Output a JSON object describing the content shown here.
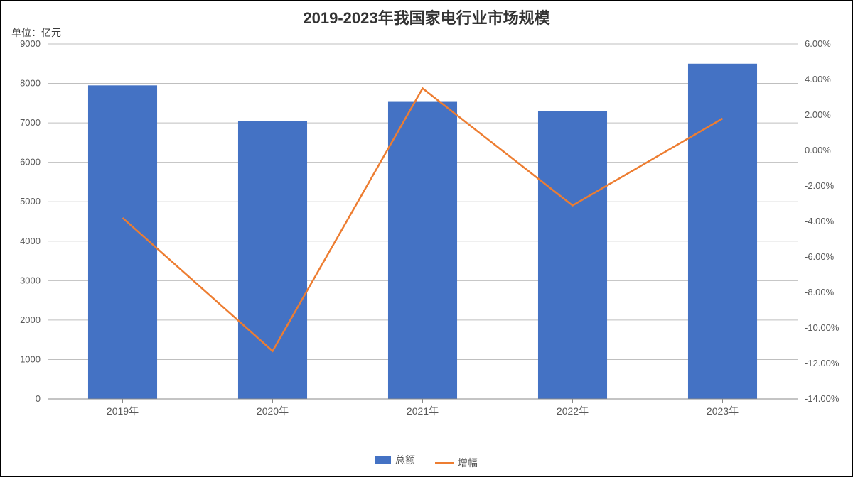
{
  "chart": {
    "type": "bar+line",
    "title": "2019-2023年我国家电行业市场规模",
    "unit_label": "单位：亿元",
    "categories": [
      "2019年",
      "2020年",
      "2021年",
      "2022年",
      "2023年"
    ],
    "bar_series": {
      "name": "总额",
      "values": [
        7950,
        7050,
        7550,
        7300,
        8500
      ],
      "color": "#4472c4",
      "bar_width_ratio": 0.46
    },
    "line_series": {
      "name": "增幅",
      "values_pct": [
        -3.8,
        -11.3,
        3.5,
        -3.1,
        1.8
      ],
      "color": "#ed7d31",
      "line_width": 2.5,
      "marker": "none"
    },
    "y_left": {
      "min": 0,
      "max": 9000,
      "step": 1000,
      "labels": [
        "0",
        "1000",
        "2000",
        "3000",
        "4000",
        "5000",
        "6000",
        "7000",
        "8000",
        "9000"
      ]
    },
    "y_right": {
      "min": -14,
      "max": 6,
      "step": 2,
      "labels": [
        "-14.00%",
        "-12.00%",
        "-10.00%",
        "-8.00%",
        "-6.00%",
        "-4.00%",
        "-2.00%",
        "0.00%",
        "2.00%",
        "4.00%",
        "6.00%"
      ]
    },
    "background_color": "#ffffff",
    "grid_color": "#bfbfbf",
    "axis_label_color": "#595959",
    "axis_label_fontsize": 13,
    "title_fontsize": 22,
    "border_color": "#000000"
  },
  "legend": {
    "items": [
      {
        "label": "总额",
        "kind": "bar",
        "color": "#4472c4"
      },
      {
        "label": "增幅",
        "kind": "line",
        "color": "#ed7d31"
      }
    ]
  }
}
